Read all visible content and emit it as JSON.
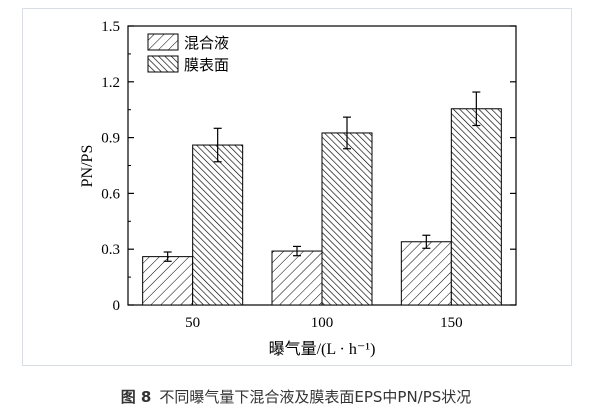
{
  "chart_data": {
    "type": "bar",
    "categories": [
      "50",
      "100",
      "150"
    ],
    "series": [
      {
        "name": "混合液",
        "values": [
          0.26,
          0.29,
          0.34
        ],
        "errors": [
          0.025,
          0.025,
          0.035
        ],
        "pattern": "sparse-forward-hatch"
      },
      {
        "name": "膜表面",
        "values": [
          0.86,
          0.925,
          1.055
        ],
        "errors": [
          0.09,
          0.085,
          0.09
        ],
        "pattern": "dense-back-hatch"
      }
    ],
    "xlabel": "曝气量/(L · h⁻¹)",
    "ylabel": "PN/PS",
    "ylim": [
      0,
      1.5
    ],
    "yticks": [
      "0",
      "0.3",
      "0.6",
      "0.9",
      "1.2",
      "1.5"
    ],
    "ytick_values": [
      0,
      0.3,
      0.6,
      0.9,
      1.2,
      1.5
    ],
    "legend_position": "top-left",
    "grid": false
  },
  "caption": {
    "label": "图 8",
    "text": "不同曝气量下混合液及膜表面EPS中PN/PS状况"
  },
  "colors": {
    "axis": "#000000",
    "frame": "#d9dde6",
    "caption_text": "#333333"
  }
}
